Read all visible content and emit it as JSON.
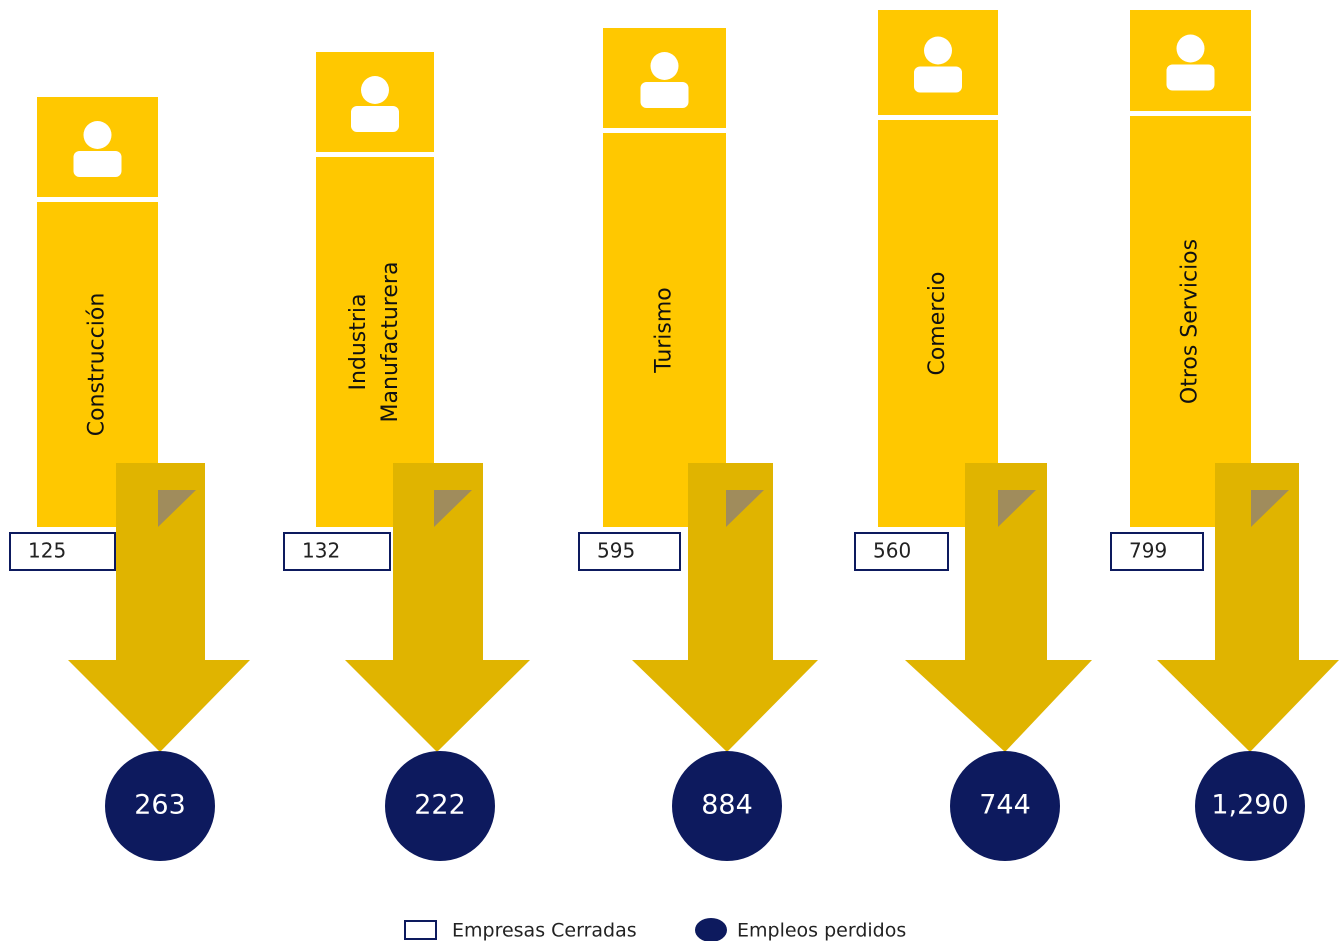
{
  "sectors": [
    {
      "name": [
        "Construcción"
      ],
      "empresas": "125",
      "empleos": "263"
    },
    {
      "name": [
        "Industria",
        "Manufacturera"
      ],
      "empresas": "132",
      "empleos": "222"
    },
    {
      "name": [
        "Turismo"
      ],
      "empresas": "595",
      "empleos": "884"
    },
    {
      "name": [
        "Comercio"
      ],
      "empresas": "560",
      "empleos": "744"
    },
    {
      "name": [
        "Otros Servicios"
      ],
      "empresas": "799",
      "empleos": "1,290"
    }
  ],
  "legend": {
    "empresas": "Empresas Cerradas",
    "empleos": "Empleos perdidos"
  }
}
